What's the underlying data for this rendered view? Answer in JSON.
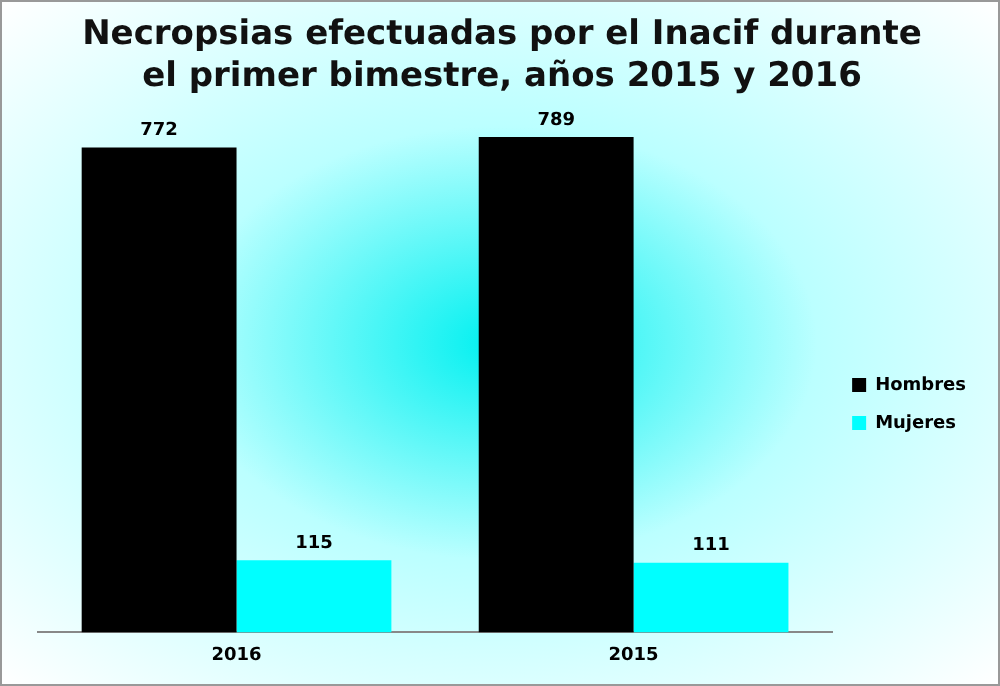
{
  "chart_data": {
    "type": "bar",
    "title": "Necropsias efectuadas por el Inacif durante el primer bimestre, años 2015 y 2016",
    "categories": [
      "2016",
      "2015"
    ],
    "series": [
      {
        "name": "Hombres",
        "color": "#000000",
        "values": [
          772,
          789
        ]
      },
      {
        "name": "Mujeres",
        "color": "#00ffff",
        "values": [
          115,
          111
        ]
      }
    ],
    "data_labels": true,
    "legend": "right",
    "grid": false,
    "tick_labels": "x"
  }
}
